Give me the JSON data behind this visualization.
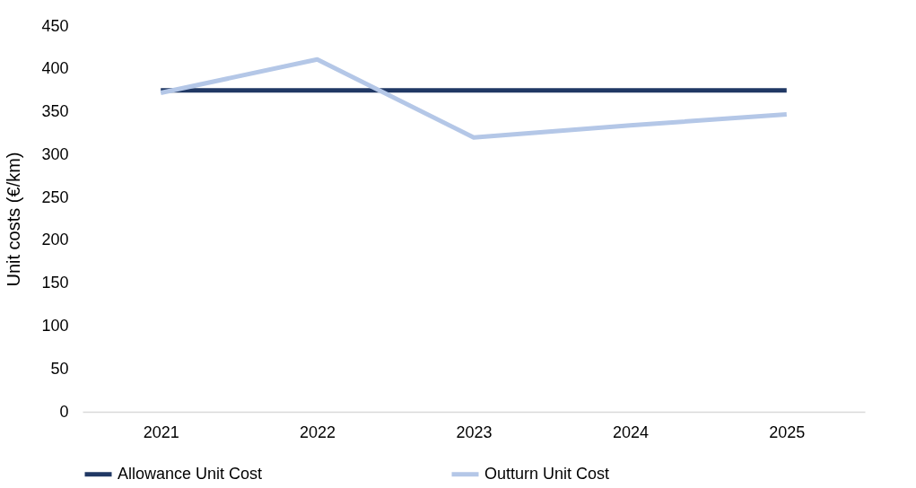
{
  "chart_data": {
    "type": "line",
    "ylabel": "Unit costs (€/km)",
    "categories": [
      "2021",
      "2022",
      "2023",
      "2024",
      "2025"
    ],
    "series": [
      {
        "name": "Allowance Unit Cost",
        "color": "#203864",
        "values": [
          375,
          375,
          375,
          375,
          375
        ]
      },
      {
        "name": "Outturn Unit Cost",
        "color": "#b4c7e7",
        "values": [
          372,
          411,
          320,
          334,
          347
        ]
      }
    ],
    "ylim": [
      0,
      450
    ],
    "yticks": [
      0,
      50,
      100,
      150,
      200,
      250,
      300,
      350,
      400,
      450
    ],
    "grid": false,
    "legend": "bottom",
    "marker": "none",
    "line_style": "solid"
  }
}
